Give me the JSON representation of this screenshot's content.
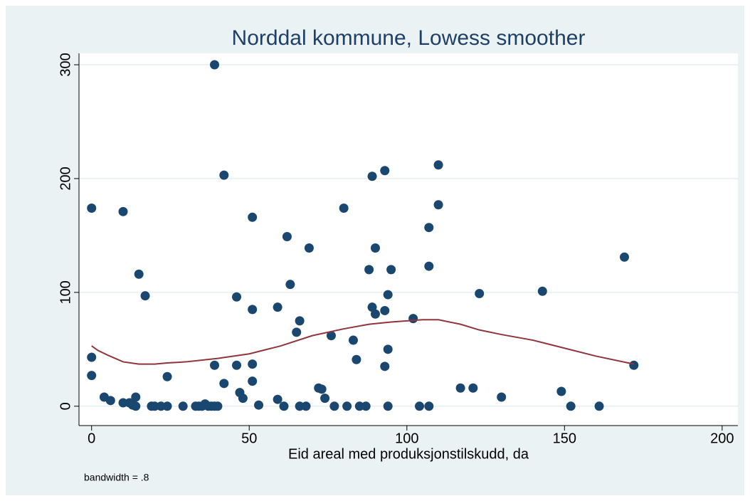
{
  "chart_data": {
    "type": "scatter",
    "title": "Norddal kommune, Lowess smoother",
    "x_label": "Eid areal med produksjonstilskudd, da",
    "note": "bandwidth = .8",
    "xlim": [
      -4,
      205
    ],
    "ylim": [
      -17,
      310
    ],
    "xticks": [
      0,
      50,
      100,
      150,
      200
    ],
    "yticks": [
      0,
      100,
      200,
      300
    ],
    "grid": true,
    "points": {
      "color": "#1a476f",
      "x": [
        0,
        0,
        0,
        4,
        6,
        10,
        10,
        12,
        13,
        14,
        14,
        15,
        17,
        19,
        20,
        22,
        24,
        24,
        29,
        33,
        34,
        35,
        36,
        37,
        38,
        39,
        40,
        39,
        39,
        42,
        42,
        46,
        46,
        47,
        48,
        51,
        51,
        51,
        51,
        53,
        59,
        59,
        61,
        62,
        63,
        65,
        66,
        66,
        68,
        69,
        72,
        73,
        74,
        76,
        77,
        80,
        81,
        83,
        84,
        85,
        87,
        88,
        89,
        89,
        90,
        90,
        93,
        93,
        93,
        94,
        94,
        94,
        95,
        102,
        104,
        107,
        107,
        107,
        110,
        110,
        117,
        121,
        123,
        130,
        143,
        149,
        152,
        161,
        169,
        172
      ],
      "y": [
        174,
        43,
        27,
        8,
        5,
        171,
        3,
        3,
        1,
        0,
        8,
        116,
        97,
        0,
        0,
        0,
        0,
        26,
        0,
        0,
        0,
        0,
        2,
        0,
        0,
        0,
        0,
        300,
        36,
        203,
        20,
        96,
        36,
        12,
        7,
        166,
        85,
        37,
        22,
        1,
        87,
        6,
        0,
        149,
        107,
        65,
        75,
        0,
        0,
        139,
        16,
        15,
        7,
        62,
        0,
        174,
        0,
        58,
        41,
        0,
        0,
        120,
        202,
        87,
        139,
        81,
        207,
        84,
        35,
        98,
        50,
        0,
        120,
        77,
        0,
        157,
        123,
        0,
        212,
        177,
        16,
        16,
        99,
        8,
        101,
        13,
        0,
        0,
        131,
        36
      ]
    },
    "lowess": {
      "color": "#90353b",
      "x": [
        0,
        2,
        5,
        10,
        15,
        20,
        24,
        30,
        40,
        50,
        60,
        70,
        80,
        88,
        95,
        100,
        105,
        110,
        117,
        123,
        130,
        140,
        150,
        160,
        172
      ],
      "y": [
        53,
        49,
        45,
        39,
        37,
        37,
        38,
        39,
        42,
        46,
        53,
        62,
        68,
        72,
        74,
        75,
        76,
        76,
        72,
        67,
        63,
        58,
        51,
        44,
        37
      ]
    }
  }
}
